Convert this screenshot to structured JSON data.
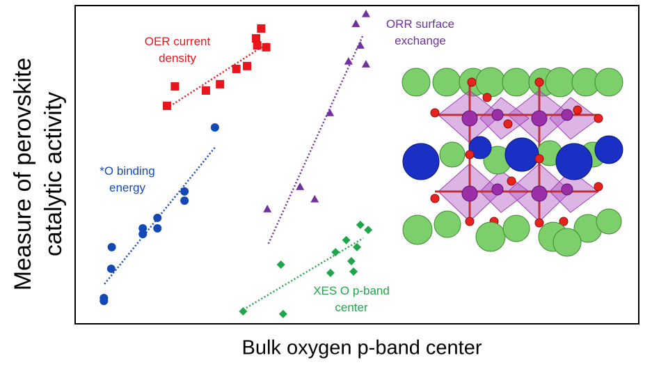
{
  "chart_data": {
    "type": "scatter",
    "x_label": "Bulk oxygen p-band center",
    "y_label": "Measure of perovskite catalytic activity",
    "xlim": [
      0,
      100
    ],
    "ylim": [
      0,
      100
    ],
    "series": [
      {
        "name": "OER current density",
        "color": "#e8161c",
        "marker": "square",
        "x": [
          16.3,
          17.7,
          23.2,
          25.7,
          28.6,
          30.5,
          32.1,
          32.3,
          33.0,
          33.9
        ],
        "values": [
          68.5,
          74.6,
          73.3,
          75.3,
          80.1,
          81.0,
          89.7,
          87.5,
          92.8,
          86.9
        ],
        "trendline": {
          "x": [
            16.3,
            34.2
          ],
          "y": [
            67.8,
            88.2
          ]
        }
      },
      {
        "name": "*O binding energy",
        "color": "#1448b4",
        "marker": "circle",
        "x": [
          5.1,
          5.1,
          6.4,
          6.5,
          12.0,
          12.0,
          14.6,
          14.6,
          19.4,
          19.4,
          24.8
        ],
        "values": [
          8.1,
          7.2,
          17.3,
          24.1,
          30.0,
          28.2,
          33.3,
          30.0,
          41.6,
          38.7,
          61.7
        ],
        "trendline": {
          "x": [
            5.2,
            24.8
          ],
          "y": [
            12.5,
            55.4
          ]
        }
      },
      {
        "name": "ORR surface exchange",
        "color": "#7030a0",
        "marker": "triangle",
        "x": [
          34.1,
          39.9,
          42.5,
          45.2,
          48.5,
          49.8,
          50.6,
          51.6,
          51.6
        ],
        "values": [
          36.1,
          43.1,
          39.2,
          66.3,
          82.5,
          94.3,
          87.5,
          97.4,
          81.6
        ],
        "trendline": {
          "x": [
            34.3,
            51.1
          ],
          "y": [
            25.2,
            90.8
          ]
        }
      },
      {
        "name": "XES O p-band center",
        "color": "#1fa64a",
        "marker": "diamond",
        "x": [
          29.8,
          36.5,
          36.9,
          45.3,
          46.2,
          48.1,
          49.0,
          49.4,
          50.0,
          50.6,
          52.0
        ],
        "values": [
          3.9,
          18.6,
          3.1,
          16.0,
          22.5,
          26.3,
          19.7,
          16.4,
          24.1,
          31.1,
          29.5
        ],
        "trendline": {
          "x": [
            29.3,
            51.1
          ],
          "y": [
            3.9,
            26.9
          ]
        }
      }
    ]
  }
}
